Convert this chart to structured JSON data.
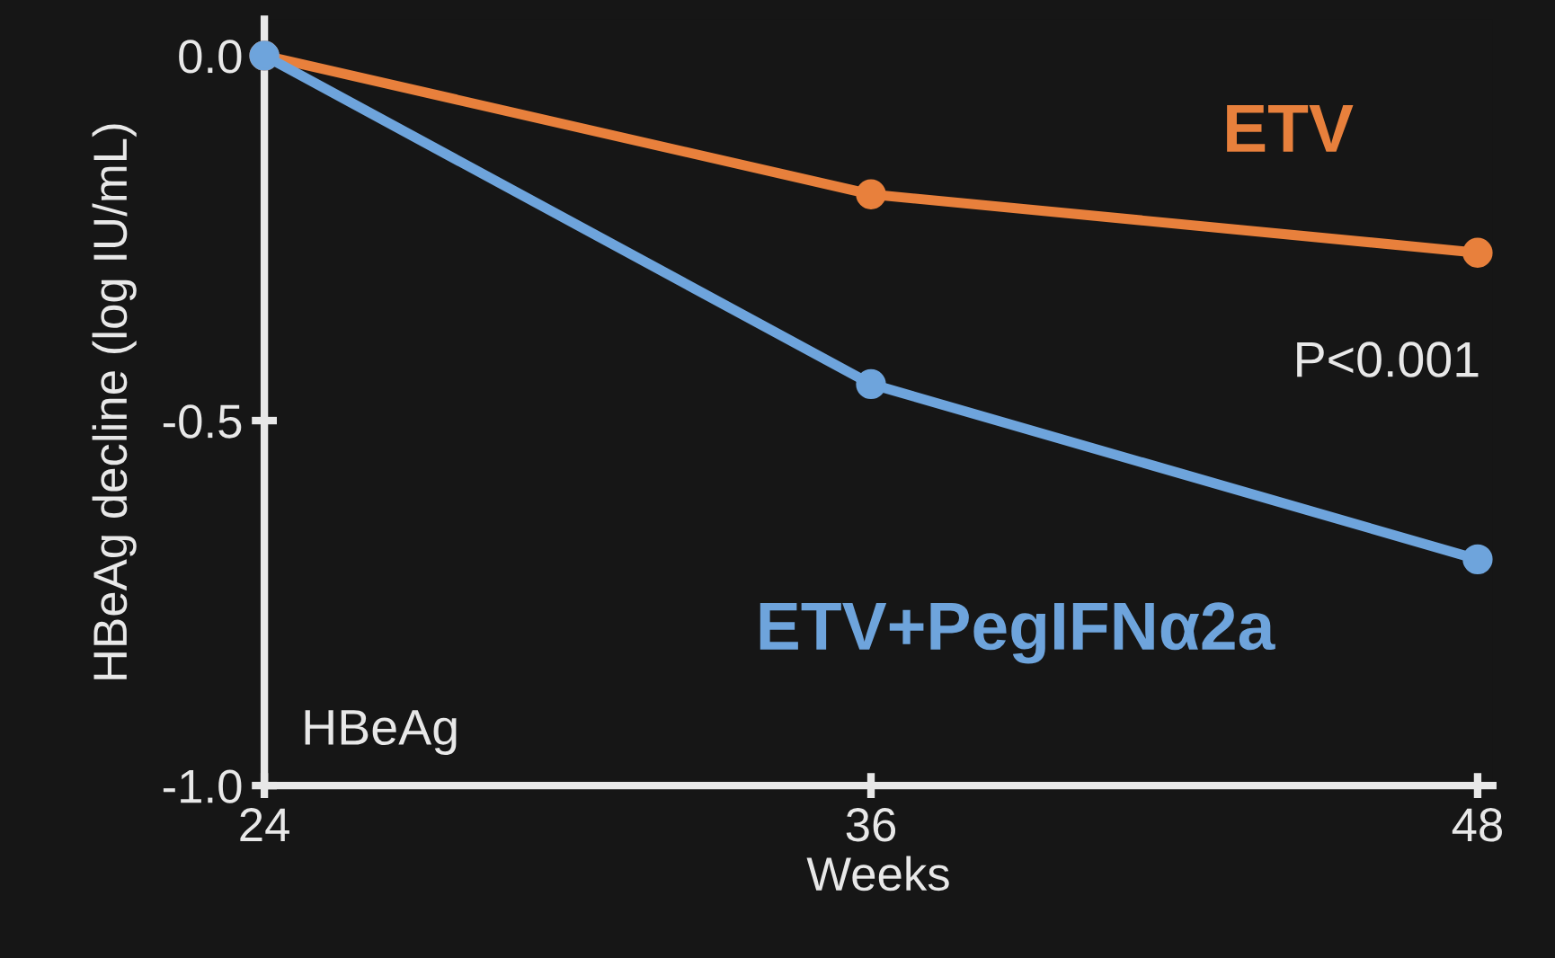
{
  "chart_data": {
    "type": "line",
    "xlabel": "Weeks",
    "ylabel": "HBeAg decline (log IU/mL)",
    "x": [
      24,
      36,
      48
    ],
    "series": [
      {
        "name": "ETV",
        "color": "#e8803c",
        "values": [
          0.0,
          -0.19,
          -0.27
        ]
      },
      {
        "name": "ETV+PegIFNα2a",
        "color": "#6ea4dc",
        "values": [
          0.0,
          -0.45,
          -0.69
        ]
      }
    ],
    "annotations": [
      "P<0.001",
      "HBeAg"
    ],
    "xlim": [
      24,
      48.3
    ],
    "ylim": [
      -1.0,
      0.05
    ],
    "xticks": [
      24,
      36,
      48
    ],
    "yticks": [
      {
        "value": 0,
        "label": "0.0"
      },
      -0.5,
      {
        "value": -1.0,
        "label": "-1.0"
      }
    ],
    "marker": "circle",
    "line_style": "solid",
    "grid": false,
    "legend": false
  }
}
